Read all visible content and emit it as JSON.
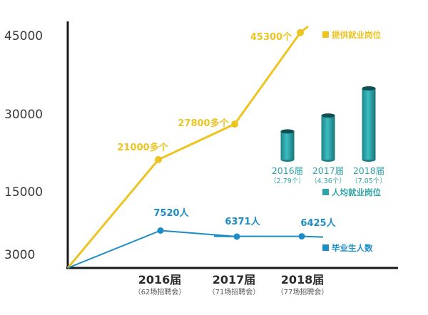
{
  "chart_data": [
    {
      "type": "line",
      "y_ticks": [
        "3000",
        "15000",
        "30000",
        "45000"
      ],
      "y_tick_values": [
        3000,
        15000,
        30000,
        45000
      ],
      "ylim": [
        0,
        48000
      ],
      "categories": [
        "2016届",
        "2017届",
        "2018届"
      ],
      "category_notes": [
        "（62场招聘会）",
        "（71场招聘会）",
        "（77场招聘会）"
      ],
      "series": [
        {
          "name": "提供就业岗位",
          "color": "#EDC421",
          "values": [
            21000,
            27800,
            45300
          ],
          "labels": [
            "21000多个",
            "27800多个",
            "45300个"
          ]
        },
        {
          "name": "毕业生人数",
          "color": "#1B8CC5",
          "values": [
            7520,
            6371,
            6425
          ],
          "labels": [
            "7520人",
            "6371人",
            "6425人"
          ]
        }
      ],
      "grid": false
    },
    {
      "type": "bar",
      "categories": [
        "2016届",
        "2017届",
        "2018届"
      ],
      "category_notes": [
        "（2.79个）",
        "（4.36个）",
        "（7.05个）"
      ],
      "values": [
        2.79,
        4.36,
        7.05
      ],
      "series_name": "人均就业岗位",
      "color": "#2FA3A6"
    }
  ]
}
